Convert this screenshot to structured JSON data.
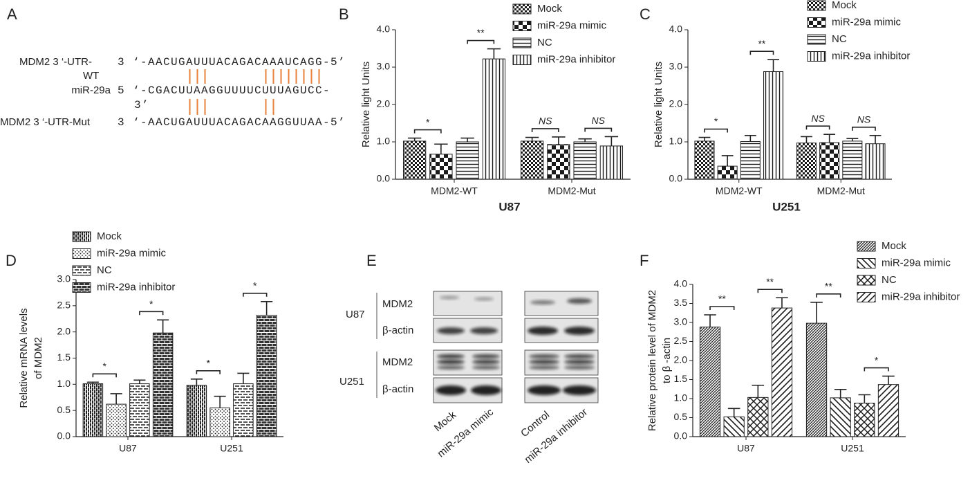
{
  "panel_a": {
    "label": "A",
    "wt_label": [
      "MDM2 3  ‘-UTR-",
      "WT"
    ],
    "wt_seq": "3 ‘-AACUGAUUUACAGACAAAUCAGG-5’",
    "mir_label": "miR-29a",
    "mir_seq": [
      "5 ‘-CGACUUAAGGUUUUCUUUAGUCC-",
      "3’"
    ],
    "mut_label": "MDM2 3  ‘-UTR-Mut",
    "mut_seq": "3 ‘-AACUGAUUUACAGACAAGGUUAA-5’"
  },
  "panel_e": {
    "label": "E",
    "cell_lines": [
      "U87",
      "U251"
    ],
    "proteins": [
      "MDM2",
      "β-actin"
    ],
    "lanes": [
      "Mock",
      "miR-29a mimic",
      "Control",
      "miR-29a inhibitor"
    ]
  },
  "chart_data": [
    {
      "type": "bar",
      "label": "B",
      "ylabel": [
        "Relative light Units"
      ],
      "xlabel": "U87",
      "categories": [
        "MDM2-WT",
        "MDM2-Mut"
      ],
      "series": [
        {
          "name": "Mock",
          "color": "#1a1a1a",
          "pattern": "checker-small",
          "values": [
            1.02,
            1.02
          ],
          "errors": [
            0.08,
            0.1
          ]
        },
        {
          "name": "miR-29a mimic",
          "color": "#1a1a1a",
          "pattern": "checker",
          "values": [
            0.67,
            0.93
          ],
          "errors": [
            0.27,
            0.2
          ]
        },
        {
          "name": "NC",
          "color": "#1a1a1a",
          "pattern": "hlines",
          "values": [
            1.0,
            1.0
          ],
          "errors": [
            0.1,
            0.08
          ]
        },
        {
          "name": "miR-29a inhibitor",
          "color": "#1a1a1a",
          "pattern": "vlines",
          "values": [
            3.22,
            0.89
          ],
          "errors": [
            0.27,
            0.25
          ]
        }
      ],
      "significance": [
        [
          "*",
          "**"
        ],
        [
          "NS",
          "NS"
        ]
      ],
      "ylim": [
        0,
        4
      ],
      "yticks": [
        {
          "value": 0,
          "label": "0.0"
        },
        {
          "value": 1,
          "label": "1.0"
        },
        {
          "value": 2,
          "label": "2.0"
        },
        {
          "value": 3,
          "label": "3.0"
        },
        {
          "value": 4,
          "label": "4.0"
        }
      ]
    },
    {
      "type": "bar",
      "label": "C",
      "ylabel": [
        "Relative light Units"
      ],
      "xlabel": "U251",
      "categories": [
        "MDM2-WT",
        "MDM2-Mut"
      ],
      "series": [
        {
          "name": "Mock",
          "color": "#1a1a1a",
          "pattern": "checker-small",
          "values": [
            1.02,
            0.97
          ],
          "errors": [
            0.1,
            0.17
          ]
        },
        {
          "name": "miR-29a mimic",
          "color": "#1a1a1a",
          "pattern": "checker",
          "values": [
            0.35,
            0.98
          ],
          "errors": [
            0.28,
            0.22
          ]
        },
        {
          "name": "NC",
          "color": "#1a1a1a",
          "pattern": "hlines",
          "values": [
            1.01,
            1.02
          ],
          "errors": [
            0.16,
            0.07
          ]
        },
        {
          "name": "miR-29a inhibitor",
          "color": "#1a1a1a",
          "pattern": "vlines",
          "values": [
            2.88,
            0.95
          ],
          "errors": [
            0.32,
            0.22
          ]
        }
      ],
      "significance": [
        [
          "*",
          "**"
        ],
        [
          "NS",
          "NS"
        ]
      ],
      "ylim": [
        0,
        4
      ],
      "yticks": [
        {
          "value": 0,
          "label": "0.0"
        },
        {
          "value": 1,
          "label": "1.0"
        },
        {
          "value": 2,
          "label": "2.0"
        },
        {
          "value": 3,
          "label": "3.0"
        },
        {
          "value": 4,
          "label": "4.0"
        }
      ]
    },
    {
      "type": "bar",
      "label": "D",
      "ylabel": [
        "Relative mRNA levels",
        "of MDM2"
      ],
      "categories": [
        "U87",
        "U251"
      ],
      "series": [
        {
          "name": "Mock",
          "color": "#1a1a1a",
          "pattern": "vbricks",
          "values": [
            1.01,
            0.98
          ],
          "errors": [
            0.03,
            0.12
          ]
        },
        {
          "name": "miR-29a mimic",
          "color": "#1a1a1a",
          "pattern": "dots",
          "values": [
            0.62,
            0.55
          ],
          "errors": [
            0.2,
            0.22
          ]
        },
        {
          "name": "NC",
          "color": "#1a1a1a",
          "pattern": "hdash",
          "values": [
            1.01,
            1.01
          ],
          "errors": [
            0.07,
            0.2
          ]
        },
        {
          "name": "miR-29a inhibitor",
          "color": "#1a1a1a",
          "pattern": "bricks",
          "values": [
            1.98,
            2.32
          ],
          "errors": [
            0.25,
            0.26
          ]
        }
      ],
      "significance": [
        [
          "*",
          "*"
        ],
        [
          "*",
          "*"
        ]
      ],
      "ylim": [
        0,
        3
      ],
      "yticks": [
        {
          "value": 0,
          "label": "0.0"
        },
        {
          "value": 0.5,
          "label": "0.5"
        },
        {
          "value": 1,
          "label": "1.0"
        },
        {
          "value": 1.5,
          "label": "1.5"
        },
        {
          "value": 2,
          "label": "2.0"
        },
        {
          "value": 2.5,
          "label": "2.5"
        },
        {
          "value": 3,
          "label": "3.0"
        }
      ]
    },
    {
      "type": "bar",
      "label": "F",
      "ylabel": [
        "Relative protein level of MDM2",
        "to β -actin"
      ],
      "categories": [
        "U87",
        "U251"
      ],
      "series": [
        {
          "name": "Mock",
          "color": "#1a1a1a",
          "pattern": "diag-dense",
          "values": [
            2.88,
            2.98
          ],
          "errors": [
            0.32,
            0.55
          ]
        },
        {
          "name": "miR-29a mimic",
          "color": "#1a1a1a",
          "pattern": "diag-down",
          "values": [
            0.52,
            1.02
          ],
          "errors": [
            0.22,
            0.22
          ]
        },
        {
          "name": "NC",
          "color": "#1a1a1a",
          "pattern": "crosshatch",
          "values": [
            1.03,
            0.88
          ],
          "errors": [
            0.32,
            0.22
          ]
        },
        {
          "name": "miR-29a inhibitor",
          "color": "#1a1a1a",
          "pattern": "diag-up",
          "values": [
            3.38,
            1.37
          ],
          "errors": [
            0.27,
            0.22
          ]
        }
      ],
      "significance": [
        [
          "**",
          "**"
        ],
        [
          "**",
          "*"
        ]
      ],
      "ylim": [
        0,
        4
      ],
      "yticks": [
        {
          "value": 0,
          "label": "0.0"
        },
        {
          "value": 0.5,
          "label": "0.5"
        },
        {
          "value": 1,
          "label": "1.0"
        },
        {
          "value": 1.5,
          "label": "1.5"
        },
        {
          "value": 2,
          "label": "2.0"
        },
        {
          "value": 2.5,
          "label": "2.5"
        },
        {
          "value": 3,
          "label": "3.0"
        },
        {
          "value": 3.5,
          "label": "3.5"
        },
        {
          "value": 4,
          "label": "4.0"
        }
      ]
    }
  ]
}
